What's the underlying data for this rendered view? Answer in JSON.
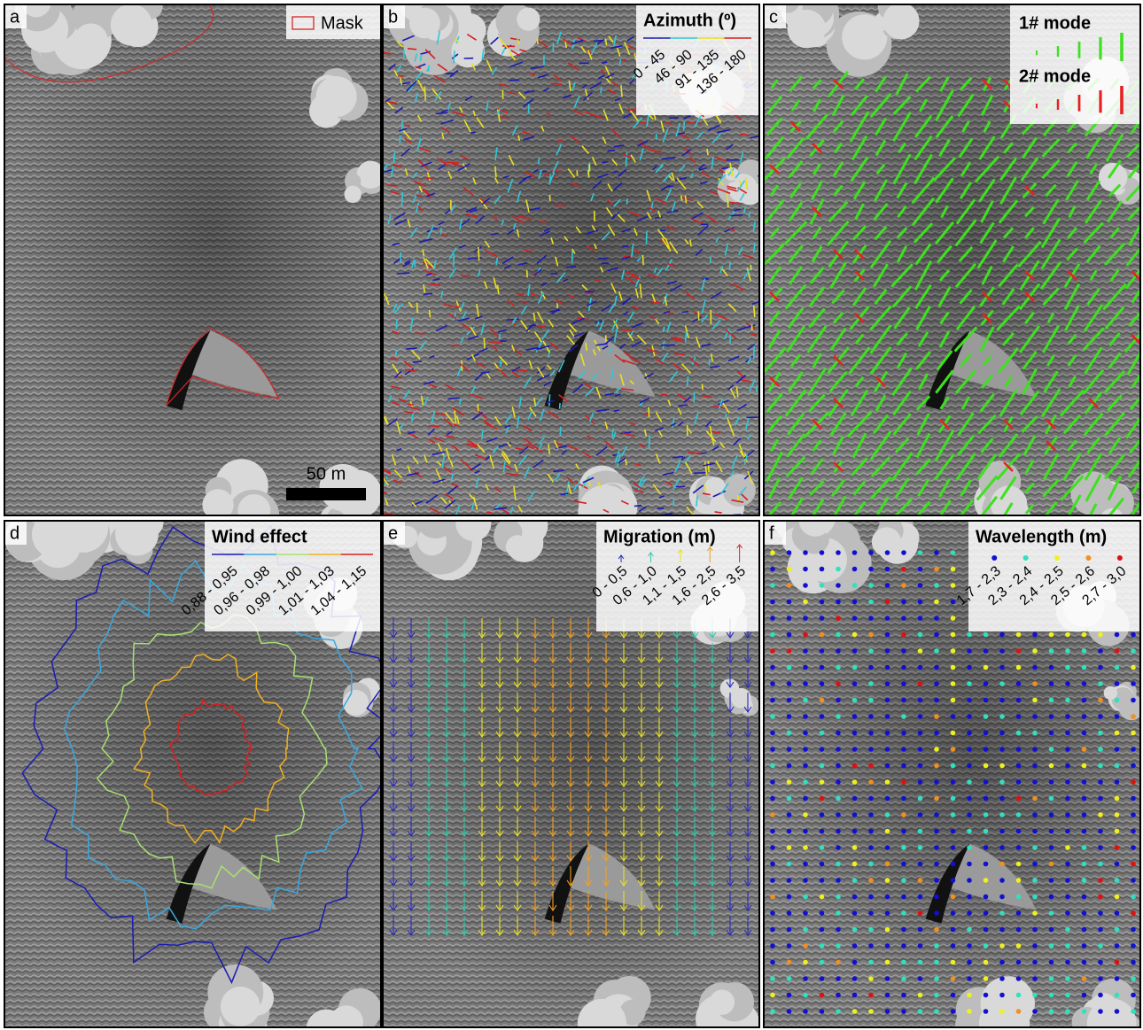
{
  "figure": {
    "panels": [
      {
        "letter": "a",
        "legend": {
          "items": [
            {
              "label": "Mask",
              "color": "#d62728"
            }
          ]
        },
        "scale_bar": "50 m"
      },
      {
        "letter": "b",
        "legend": {
          "title": "Azimuth (º)",
          "items": [
            {
              "label": "0 - 45",
              "color": "#1a1ab4"
            },
            {
              "label": "46 - 90",
              "color": "#30c8d8"
            },
            {
              "label": "91 - 135",
              "color": "#e8e020"
            },
            {
              "label": "136 - 180",
              "color": "#d42020"
            }
          ]
        }
      },
      {
        "letter": "c",
        "legend": {
          "items": [
            {
              "label": "1# mode",
              "color": "#3ee020"
            },
            {
              "label": "2# mode",
              "color": "#e82020"
            }
          ]
        }
      },
      {
        "letter": "d",
        "legend": {
          "title": "Wind effect",
          "items": [
            {
              "label": "0,88 - 0,95",
              "color": "#1a1ab4"
            },
            {
              "label": "0,96 - 0,98",
              "color": "#38a8e0"
            },
            {
              "label": "0,99 - 1,00",
              "color": "#a8e070"
            },
            {
              "label": "1,01 - 1,03",
              "color": "#f0b020"
            },
            {
              "label": "1,04 - 1,15",
              "color": "#d42020"
            }
          ]
        }
      },
      {
        "letter": "e",
        "legend": {
          "title": "Migration (m)",
          "items": [
            {
              "label": "0 - 0,5",
              "color": "#2828c0"
            },
            {
              "label": "0,6 - 1,0",
              "color": "#30c8a8"
            },
            {
              "label": "1,1 - 1,5",
              "color": "#e8e020"
            },
            {
              "label": "1,6 - 2,5",
              "color": "#f0a020"
            },
            {
              "label": "2,6 - 3,5",
              "color": "#e02020"
            }
          ]
        }
      },
      {
        "letter": "f",
        "legend": {
          "title": "Wavelength (m)",
          "items": [
            {
              "label": "1,7 - 2,3",
              "color": "#1010d0"
            },
            {
              "label": "2,3 - 2,4",
              "color": "#30e0c0"
            },
            {
              "label": "2,4 - 2,5",
              "color": "#f0f020"
            },
            {
              "label": "2,5 - 2,6",
              "color": "#f09020"
            },
            {
              "label": "2,7 - 3,0",
              "color": "#e01010"
            }
          ]
        }
      }
    ]
  }
}
